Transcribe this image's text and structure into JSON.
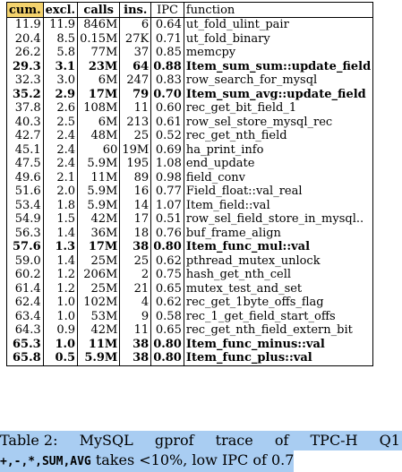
{
  "table": {
    "headers": [
      "cum.",
      "excl.",
      "calls",
      "ins.",
      "IPC",
      "function"
    ],
    "rows": [
      {
        "cum": "11.9",
        "excl": "11.9",
        "calls": "846M",
        "ins": "6",
        "ipc": "0.64",
        "function": "ut_fold_ulint_pair",
        "bold": false
      },
      {
        "cum": "20.4",
        "excl": "8.5",
        "calls": "0.15M",
        "ins": "27K",
        "ipc": "0.71",
        "function": "ut_fold_binary",
        "bold": false
      },
      {
        "cum": "26.2",
        "excl": "5.8",
        "calls": "77M",
        "ins": "37",
        "ipc": "0.85",
        "function": "memcpy",
        "bold": false
      },
      {
        "cum": "29.3",
        "excl": "3.1",
        "calls": "23M",
        "ins": "64",
        "ipc": "0.88",
        "function": "Item_sum_sum::update_field",
        "bold": true
      },
      {
        "cum": "32.3",
        "excl": "3.0",
        "calls": "6M",
        "ins": "247",
        "ipc": "0.83",
        "function": "row_search_for_mysql",
        "bold": false
      },
      {
        "cum": "35.2",
        "excl": "2.9",
        "calls": "17M",
        "ins": "79",
        "ipc": "0.70",
        "function": "Item_sum_avg::update_field",
        "bold": true
      },
      {
        "cum": "37.8",
        "excl": "2.6",
        "calls": "108M",
        "ins": "11",
        "ipc": "0.60",
        "function": "rec_get_bit_field_1",
        "bold": false
      },
      {
        "cum": "40.3",
        "excl": "2.5",
        "calls": "6M",
        "ins": "213",
        "ipc": "0.61",
        "function": "row_sel_store_mysql_rec",
        "bold": false
      },
      {
        "cum": "42.7",
        "excl": "2.4",
        "calls": "48M",
        "ins": "25",
        "ipc": "0.52",
        "function": "rec_get_nth_field",
        "bold": false
      },
      {
        "cum": "45.1",
        "excl": "2.4",
        "calls": "60",
        "ins": "19M",
        "ipc": "0.69",
        "function": "ha_print_info",
        "bold": false
      },
      {
        "cum": "47.5",
        "excl": "2.4",
        "calls": "5.9M",
        "ins": "195",
        "ipc": "1.08",
        "function": "end_update",
        "bold": false
      },
      {
        "cum": "49.6",
        "excl": "2.1",
        "calls": "11M",
        "ins": "89",
        "ipc": "0.98",
        "function": "field_conv",
        "bold": false
      },
      {
        "cum": "51.6",
        "excl": "2.0",
        "calls": "5.9M",
        "ins": "16",
        "ipc": "0.77",
        "function": "Field_float::val_real",
        "bold": false
      },
      {
        "cum": "53.4",
        "excl": "1.8",
        "calls": "5.9M",
        "ins": "14",
        "ipc": "1.07",
        "function": "Item_field::val",
        "bold": false
      },
      {
        "cum": "54.9",
        "excl": "1.5",
        "calls": "42M",
        "ins": "17",
        "ipc": "0.51",
        "function": "row_sel_field_store_in_mysql..",
        "bold": false
      },
      {
        "cum": "56.3",
        "excl": "1.4",
        "calls": "36M",
        "ins": "18",
        "ipc": "0.76",
        "function": "buf_frame_align",
        "bold": false
      },
      {
        "cum": "57.6",
        "excl": "1.3",
        "calls": "17M",
        "ins": "38",
        "ipc": "0.80",
        "function": "Item_func_mul::val",
        "bold": true
      },
      {
        "cum": "59.0",
        "excl": "1.4",
        "calls": "25M",
        "ins": "25",
        "ipc": "0.62",
        "function": "pthread_mutex_unlock",
        "bold": false
      },
      {
        "cum": "60.2",
        "excl": "1.2",
        "calls": "206M",
        "ins": "2",
        "ipc": "0.75",
        "function": "hash_get_nth_cell",
        "bold": false
      },
      {
        "cum": "61.4",
        "excl": "1.2",
        "calls": "25M",
        "ins": "21",
        "ipc": "0.65",
        "function": "mutex_test_and_set",
        "bold": false
      },
      {
        "cum": "62.4",
        "excl": "1.0",
        "calls": "102M",
        "ins": "4",
        "ipc": "0.62",
        "function": "rec_get_1byte_offs_flag",
        "bold": false
      },
      {
        "cum": "63.4",
        "excl": "1.0",
        "calls": "53M",
        "ins": "9",
        "ipc": "0.58",
        "function": "rec_1_get_field_start_offs",
        "bold": false
      },
      {
        "cum": "64.3",
        "excl": "0.9",
        "calls": "42M",
        "ins": "11",
        "ipc": "0.65",
        "function": "rec_get_nth_field_extern_bit",
        "bold": false
      },
      {
        "cum": "65.3",
        "excl": "1.0",
        "calls": "11M",
        "ins": "38",
        "ipc": "0.80",
        "function": "Item_func_minus::val",
        "bold": true
      },
      {
        "cum": "65.8",
        "excl": "0.5",
        "calls": "5.9M",
        "ins": "38",
        "ipc": "0.80",
        "function": "Item_func_plus::val",
        "bold": true
      }
    ]
  },
  "caption": {
    "label": "Table 2:",
    "words": [
      "MySQL",
      "gprof",
      "trace",
      "of",
      "TPC-H",
      "Q1"
    ],
    "ops": "+,-,*,SUM,AVG",
    "rest": " takes <10%, low IPC of 0.7"
  },
  "colors": {
    "header_highlight": "#f4d36e",
    "caption_selection": "#a9cdf2"
  }
}
